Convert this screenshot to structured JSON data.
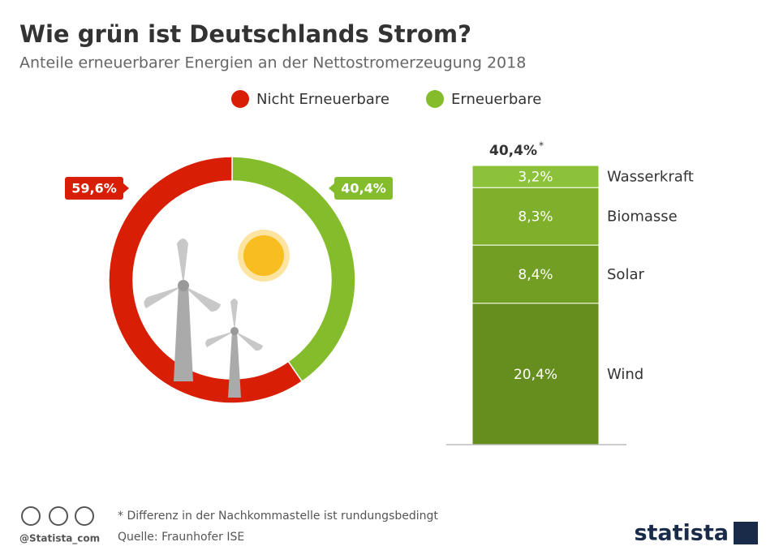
{
  "title": "Wie grün ist Deutschlands Strom?",
  "subtitle": "Anteile erneuerbarer Energien an der Nettostromerzeugung 2018",
  "chart_data": [
    {
      "type": "donut",
      "categories": [
        "Nicht Erneuerbare",
        "Erneuerbare"
      ],
      "values": [
        59.6,
        40.4
      ],
      "value_labels": [
        "59,6%",
        "40,4%"
      ],
      "colors": [
        "#d81e05",
        "#84bc2b"
      ]
    },
    {
      "type": "stacked-bar",
      "categories": [
        "Wasserkraft",
        "Biomasse",
        "Solar",
        "Wind"
      ],
      "values": [
        3.2,
        8.3,
        8.4,
        20.4
      ],
      "value_labels": [
        "3,2%",
        "8,3%",
        "8,4%",
        "20,4%"
      ],
      "colors": [
        "#8cc23a",
        "#7fb02c",
        "#729e23",
        "#658e1e"
      ],
      "total_label": "40,4%",
      "total_note": "*"
    }
  ],
  "footer": {
    "note": "* Differenz in der Nachkommastelle ist rundungsbedingt",
    "source": "Quelle: Fraunhofer ISE",
    "handle": "@Statista_com",
    "brand": "statista"
  }
}
